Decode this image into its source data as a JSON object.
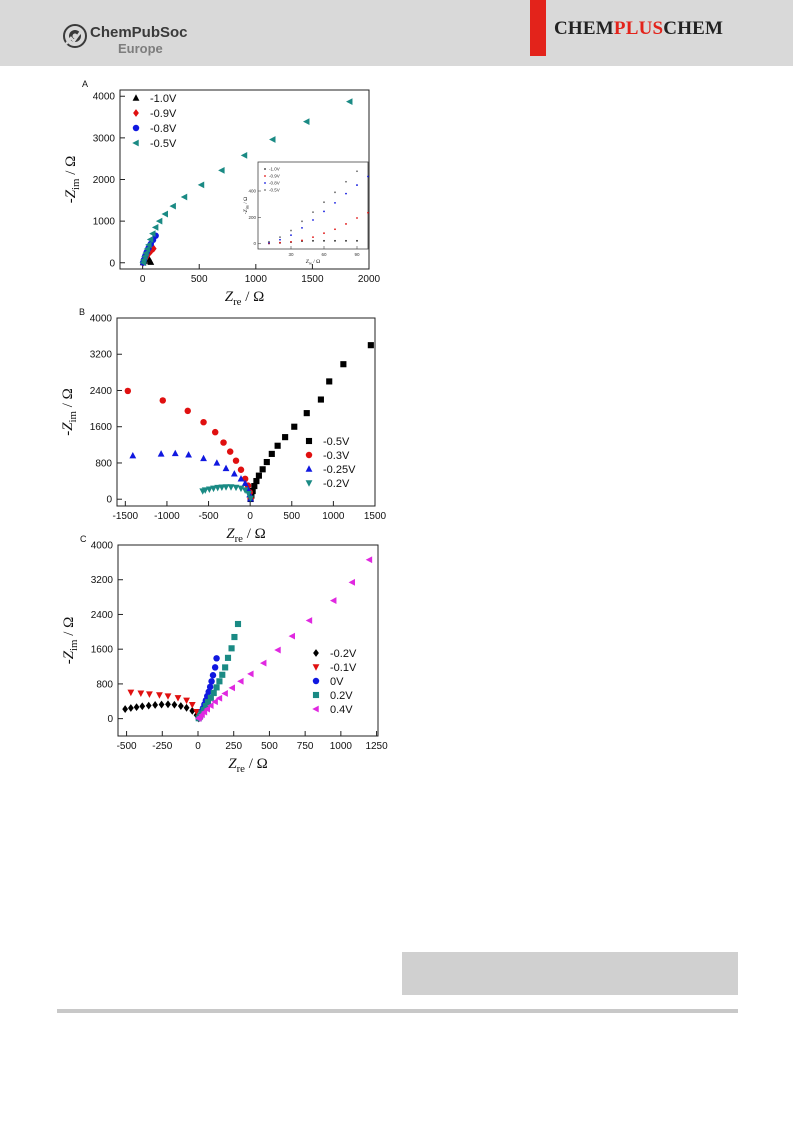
{
  "header": {
    "publisher_name": "ChemPubSoc",
    "publisher_sub": "Europe",
    "journal_part1": "CHEM",
    "journal_part2": "PLUS",
    "journal_part3": "CHEM",
    "accent_color": "#e3231b",
    "header_bg": "#d9d9d9"
  },
  "chart_data": [
    {
      "type": "scatter",
      "panel_label": "A",
      "xlim": [
        -200,
        2000
      ],
      "ylim": [
        -150,
        4150
      ],
      "xticks": [
        0,
        500,
        1000,
        1500,
        2000
      ],
      "yticks": [
        0,
        1000,
        2000,
        3000,
        4000
      ],
      "series": [
        {
          "name": "-1.0V",
          "color": "#000000",
          "marker": "triangle-up",
          "points": [
            [
              5,
              5
            ],
            [
              15,
              40
            ],
            [
              28,
              85
            ],
            [
              42,
              125
            ],
            [
              55,
              90
            ],
            [
              65,
              45
            ],
            [
              72,
              15
            ]
          ]
        },
        {
          "name": "-0.9V",
          "color": "#e01010",
          "marker": "diamond",
          "points": [
            [
              5,
              5
            ],
            [
              12,
              45
            ],
            [
              25,
              100
            ],
            [
              40,
              160
            ],
            [
              58,
              225
            ],
            [
              78,
              290
            ],
            [
              98,
              340
            ]
          ]
        },
        {
          "name": "-0.8V",
          "color": "#1018e0",
          "marker": "circle",
          "points": [
            [
              5,
              5
            ],
            [
              12,
              70
            ],
            [
              22,
              155
            ],
            [
              35,
              250
            ],
            [
              52,
              350
            ],
            [
              72,
              450
            ],
            [
              92,
              550
            ],
            [
              115,
              650
            ]
          ]
        },
        {
          "name": "-0.5V",
          "color": "#1a8a84",
          "marker": "triangle-left",
          "points": [
            [
              5,
              5
            ],
            [
              10,
              70
            ],
            [
              20,
              150
            ],
            [
              30,
              230
            ],
            [
              42,
              330
            ],
            [
              55,
              430
            ],
            [
              70,
              560
            ],
            [
              90,
              700
            ],
            [
              115,
              850
            ],
            [
              150,
              1000
            ],
            [
              200,
              1170
            ],
            [
              270,
              1360
            ],
            [
              370,
              1580
            ],
            [
              520,
              1870
            ],
            [
              700,
              2220
            ],
            [
              900,
              2580
            ],
            [
              1150,
              2960
            ],
            [
              1450,
              3390
            ],
            [
              1830,
              3870
            ]
          ]
        }
      ],
      "inset": {
        "xlim": [
          0,
          100
        ],
        "ylim": [
          -40,
          620
        ],
        "xticks": [
          30,
          60,
          90
        ],
        "yticks": [
          0,
          200,
          400
        ],
        "series": [
          {
            "name": "-1.0V",
            "color": "#222222",
            "points": [
              [
                10,
                2
              ],
              [
                20,
                6
              ],
              [
                30,
                12
              ],
              [
                40,
                20
              ],
              [
                50,
                22
              ],
              [
                60,
                22
              ],
              [
                70,
                22
              ],
              [
                80,
                22
              ],
              [
                90,
                22
              ]
            ]
          },
          {
            "name": "-0.9V",
            "color": "#e01010",
            "points": [
              [
                10,
                3
              ],
              [
                20,
                8
              ],
              [
                30,
                14
              ],
              [
                40,
                25
              ],
              [
                50,
                50
              ],
              [
                60,
                80
              ],
              [
                70,
                110
              ],
              [
                80,
                150
              ],
              [
                90,
                195
              ],
              [
                100,
                235
              ]
            ]
          },
          {
            "name": "-0.8V",
            "color": "#1018e0",
            "points": [
              [
                10,
                8
              ],
              [
                20,
                30
              ],
              [
                30,
                65
              ],
              [
                40,
                120
              ],
              [
                50,
                180
              ],
              [
                60,
                245
              ],
              [
                70,
                310
              ],
              [
                80,
                380
              ],
              [
                90,
                445
              ],
              [
                100,
                510
              ]
            ]
          },
          {
            "name": "-0.5V",
            "color": "#6a6a6a",
            "points": [
              [
                10,
                15
              ],
              [
                20,
                50
              ],
              [
                30,
                100
              ],
              [
                40,
                170
              ],
              [
                50,
                240
              ],
              [
                60,
                315
              ],
              [
                70,
                390
              ],
              [
                80,
                470
              ],
              [
                90,
                550
              ]
            ]
          }
        ]
      }
    },
    {
      "type": "scatter",
      "panel_label": "B",
      "xlim": [
        -1600,
        1500
      ],
      "ylim": [
        -150,
        4000
      ],
      "xticks": [
        -1500,
        -1000,
        -500,
        0,
        500,
        1000,
        1500
      ],
      "yticks": [
        0,
        800,
        1600,
        2400,
        3200,
        4000
      ],
      "series": [
        {
          "name": "-0.5V",
          "color": "#000000",
          "marker": "square",
          "points": [
            [
              5,
              5
            ],
            [
              15,
              80
            ],
            [
              30,
              180
            ],
            [
              50,
              290
            ],
            [
              75,
              400
            ],
            [
              105,
              520
            ],
            [
              150,
              660
            ],
            [
              200,
              820
            ],
            [
              260,
              1000
            ],
            [
              330,
              1180
            ],
            [
              420,
              1370
            ],
            [
              530,
              1600
            ],
            [
              680,
              1900
            ],
            [
              850,
              2200
            ],
            [
              950,
              2600
            ],
            [
              1120,
              2980
            ],
            [
              1450,
              3400
            ]
          ]
        },
        {
          "name": "-0.3V",
          "color": "#e01010",
          "marker": "circle",
          "points": [
            [
              5,
              20
            ],
            [
              -5,
              150
            ],
            [
              -25,
              300
            ],
            [
              -60,
              450
            ],
            [
              -110,
              650
            ],
            [
              -170,
              850
            ],
            [
              -240,
              1050
            ],
            [
              -320,
              1250
            ],
            [
              -420,
              1480
            ],
            [
              -560,
              1700
            ],
            [
              -750,
              1950
            ],
            [
              -1050,
              2180
            ],
            [
              -1470,
              2390
            ]
          ]
        },
        {
          "name": "-0.25V",
          "color": "#1018e0",
          "marker": "triangle-up",
          "points": [
            [
              5,
              10
            ],
            [
              -5,
              100
            ],
            [
              -25,
              220
            ],
            [
              -60,
              350
            ],
            [
              -110,
              450
            ],
            [
              -190,
              560
            ],
            [
              -290,
              680
            ],
            [
              -400,
              800
            ],
            [
              -560,
              900
            ],
            [
              -740,
              980
            ],
            [
              -900,
              1010
            ],
            [
              -1070,
              1000
            ],
            [
              -1410,
              960
            ]
          ]
        },
        {
          "name": "-0.2V",
          "color": "#1a8a84",
          "marker": "triangle-down",
          "points": [
            [
              5,
              20
            ],
            [
              -20,
              120
            ],
            [
              -60,
              200
            ],
            [
              -110,
              240
            ],
            [
              -170,
              260
            ],
            [
              -230,
              270
            ],
            [
              -290,
              270
            ],
            [
              -340,
              265
            ],
            [
              -390,
              255
            ],
            [
              -440,
              240
            ],
            [
              -490,
              220
            ],
            [
              -540,
              200
            ],
            [
              -570,
              180
            ]
          ]
        }
      ]
    },
    {
      "type": "scatter",
      "panel_label": "C",
      "xlim": [
        -560,
        1260
      ],
      "ylim": [
        -400,
        4000
      ],
      "xticks": [
        -500,
        -250,
        0,
        250,
        500,
        750,
        1000,
        1250
      ],
      "yticks": [
        0,
        800,
        1600,
        2400,
        3200,
        4000
      ],
      "series": [
        {
          "name": "-0.2V",
          "color": "#000000",
          "marker": "diamond",
          "points": [
            [
              5,
              5
            ],
            [
              -10,
              80
            ],
            [
              -40,
              180
            ],
            [
              -80,
              250
            ],
            [
              -120,
              290
            ],
            [
              -165,
              320
            ],
            [
              -210,
              330
            ],
            [
              -255,
              325
            ],
            [
              -300,
              315
            ],
            [
              -345,
              300
            ],
            [
              -390,
              285
            ],
            [
              -430,
              265
            ],
            [
              -470,
              245
            ],
            [
              -510,
              220
            ]
          ]
        },
        {
          "name": "-0.1V",
          "color": "#e01010",
          "marker": "triangle-down",
          "points": [
            [
              5,
              10
            ],
            [
              -10,
              160
            ],
            [
              -40,
              320
            ],
            [
              -80,
              420
            ],
            [
              -140,
              480
            ],
            [
              -210,
              520
            ],
            [
              -270,
              545
            ],
            [
              -340,
              565
            ],
            [
              -400,
              585
            ],
            [
              -470,
              605
            ]
          ]
        },
        {
          "name": "0V",
          "color": "#1018e0",
          "marker": "circle",
          "points": [
            [
              5,
              10
            ],
            [
              15,
              80
            ],
            [
              25,
              160
            ],
            [
              35,
              240
            ],
            [
              45,
              330
            ],
            [
              55,
              420
            ],
            [
              65,
              520
            ],
            [
              75,
              620
            ],
            [
              85,
              730
            ],
            [
              95,
              860
            ],
            [
              105,
              1000
            ],
            [
              120,
              1180
            ],
            [
              130,
              1390
            ]
          ]
        },
        {
          "name": "0.2V",
          "color": "#1a8a84",
          "marker": "square",
          "points": [
            [
              5,
              10
            ],
            [
              15,
              60
            ],
            [
              25,
              120
            ],
            [
              40,
              200
            ],
            [
              55,
              290
            ],
            [
              70,
              380
            ],
            [
              90,
              480
            ],
            [
              110,
              590
            ],
            [
              130,
              720
            ],
            [
              150,
              860
            ],
            [
              170,
              1010
            ],
            [
              190,
              1180
            ],
            [
              210,
              1400
            ],
            [
              235,
              1620
            ],
            [
              255,
              1880
            ],
            [
              280,
              2180
            ]
          ]
        },
        {
          "name": "0.4V",
          "color": "#e028e0",
          "marker": "triangle-left",
          "points": [
            [
              5,
              5
            ],
            [
              15,
              40
            ],
            [
              28,
              90
            ],
            [
              45,
              150
            ],
            [
              65,
              220
            ],
            [
              90,
              300
            ],
            [
              120,
              390
            ],
            [
              150,
              470
            ],
            [
              190,
              580
            ],
            [
              240,
              710
            ],
            [
              300,
              860
            ],
            [
              370,
              1030
            ],
            [
              460,
              1280
            ],
            [
              560,
              1580
            ],
            [
              660,
              1900
            ],
            [
              780,
              2260
            ],
            [
              950,
              2720
            ],
            [
              1080,
              3140
            ],
            [
              1200,
              3660
            ]
          ]
        }
      ]
    }
  ],
  "axis_text": {
    "ylabel_main": "-Z",
    "ylabel_sub": "im",
    "ylabel_unit": " / Ω",
    "xlabel_main": "Z",
    "xlabel_sub": "re",
    "xlabel_unit": " / Ω",
    "inset_ylabel_main": "-Z",
    "inset_ylabel_sub": "im",
    "inset_ylabel_unit": " / Ω",
    "inset_xlabel_main": "Z",
    "inset_xlabel_sub": "re",
    "inset_xlabel_unit": " / Ω"
  }
}
